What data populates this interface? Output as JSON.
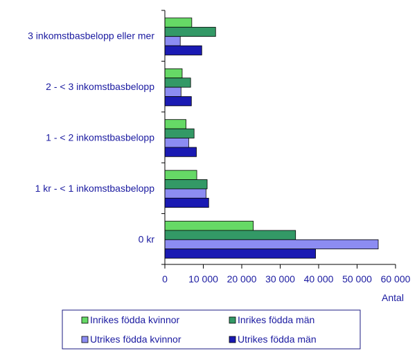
{
  "chart_data": {
    "type": "bar",
    "orientation": "horizontal",
    "categories": [
      "3 inkomstbasbelopp eller mer",
      "2 -  < 3 inkomstbasbelopp",
      "1 -  < 2 inkomstbasbelopp",
      "1 kr -  < 1 inkomstbasbelopp",
      "0 kr"
    ],
    "series": [
      {
        "name": "Inrikes födda kvinnor",
        "color": "#66d966",
        "values": [
          7000,
          4500,
          5500,
          8300,
          23000
        ]
      },
      {
        "name": "Inrikes födda män",
        "color": "#339966",
        "values": [
          13200,
          6700,
          7600,
          11000,
          34000
        ]
      },
      {
        "name": "Utrikes födda kvinnor",
        "color": "#8c8cf2",
        "values": [
          4000,
          4200,
          6200,
          10700,
          55500
        ]
      },
      {
        "name": "Utrikes födda män",
        "color": "#1a1ab3",
        "values": [
          9600,
          6900,
          8200,
          11400,
          39200
        ]
      }
    ],
    "xlim": [
      0,
      60000
    ],
    "xticks": [
      0,
      10000,
      20000,
      30000,
      40000,
      50000,
      60000
    ],
    "xtick_labels": [
      "0",
      "10 000",
      "20 000",
      "30 000",
      "40 000",
      "50 000",
      "60 000"
    ],
    "xlabel": "Antal",
    "ylabel": "",
    "title": "",
    "grid": false,
    "legend_position": "bottom"
  }
}
